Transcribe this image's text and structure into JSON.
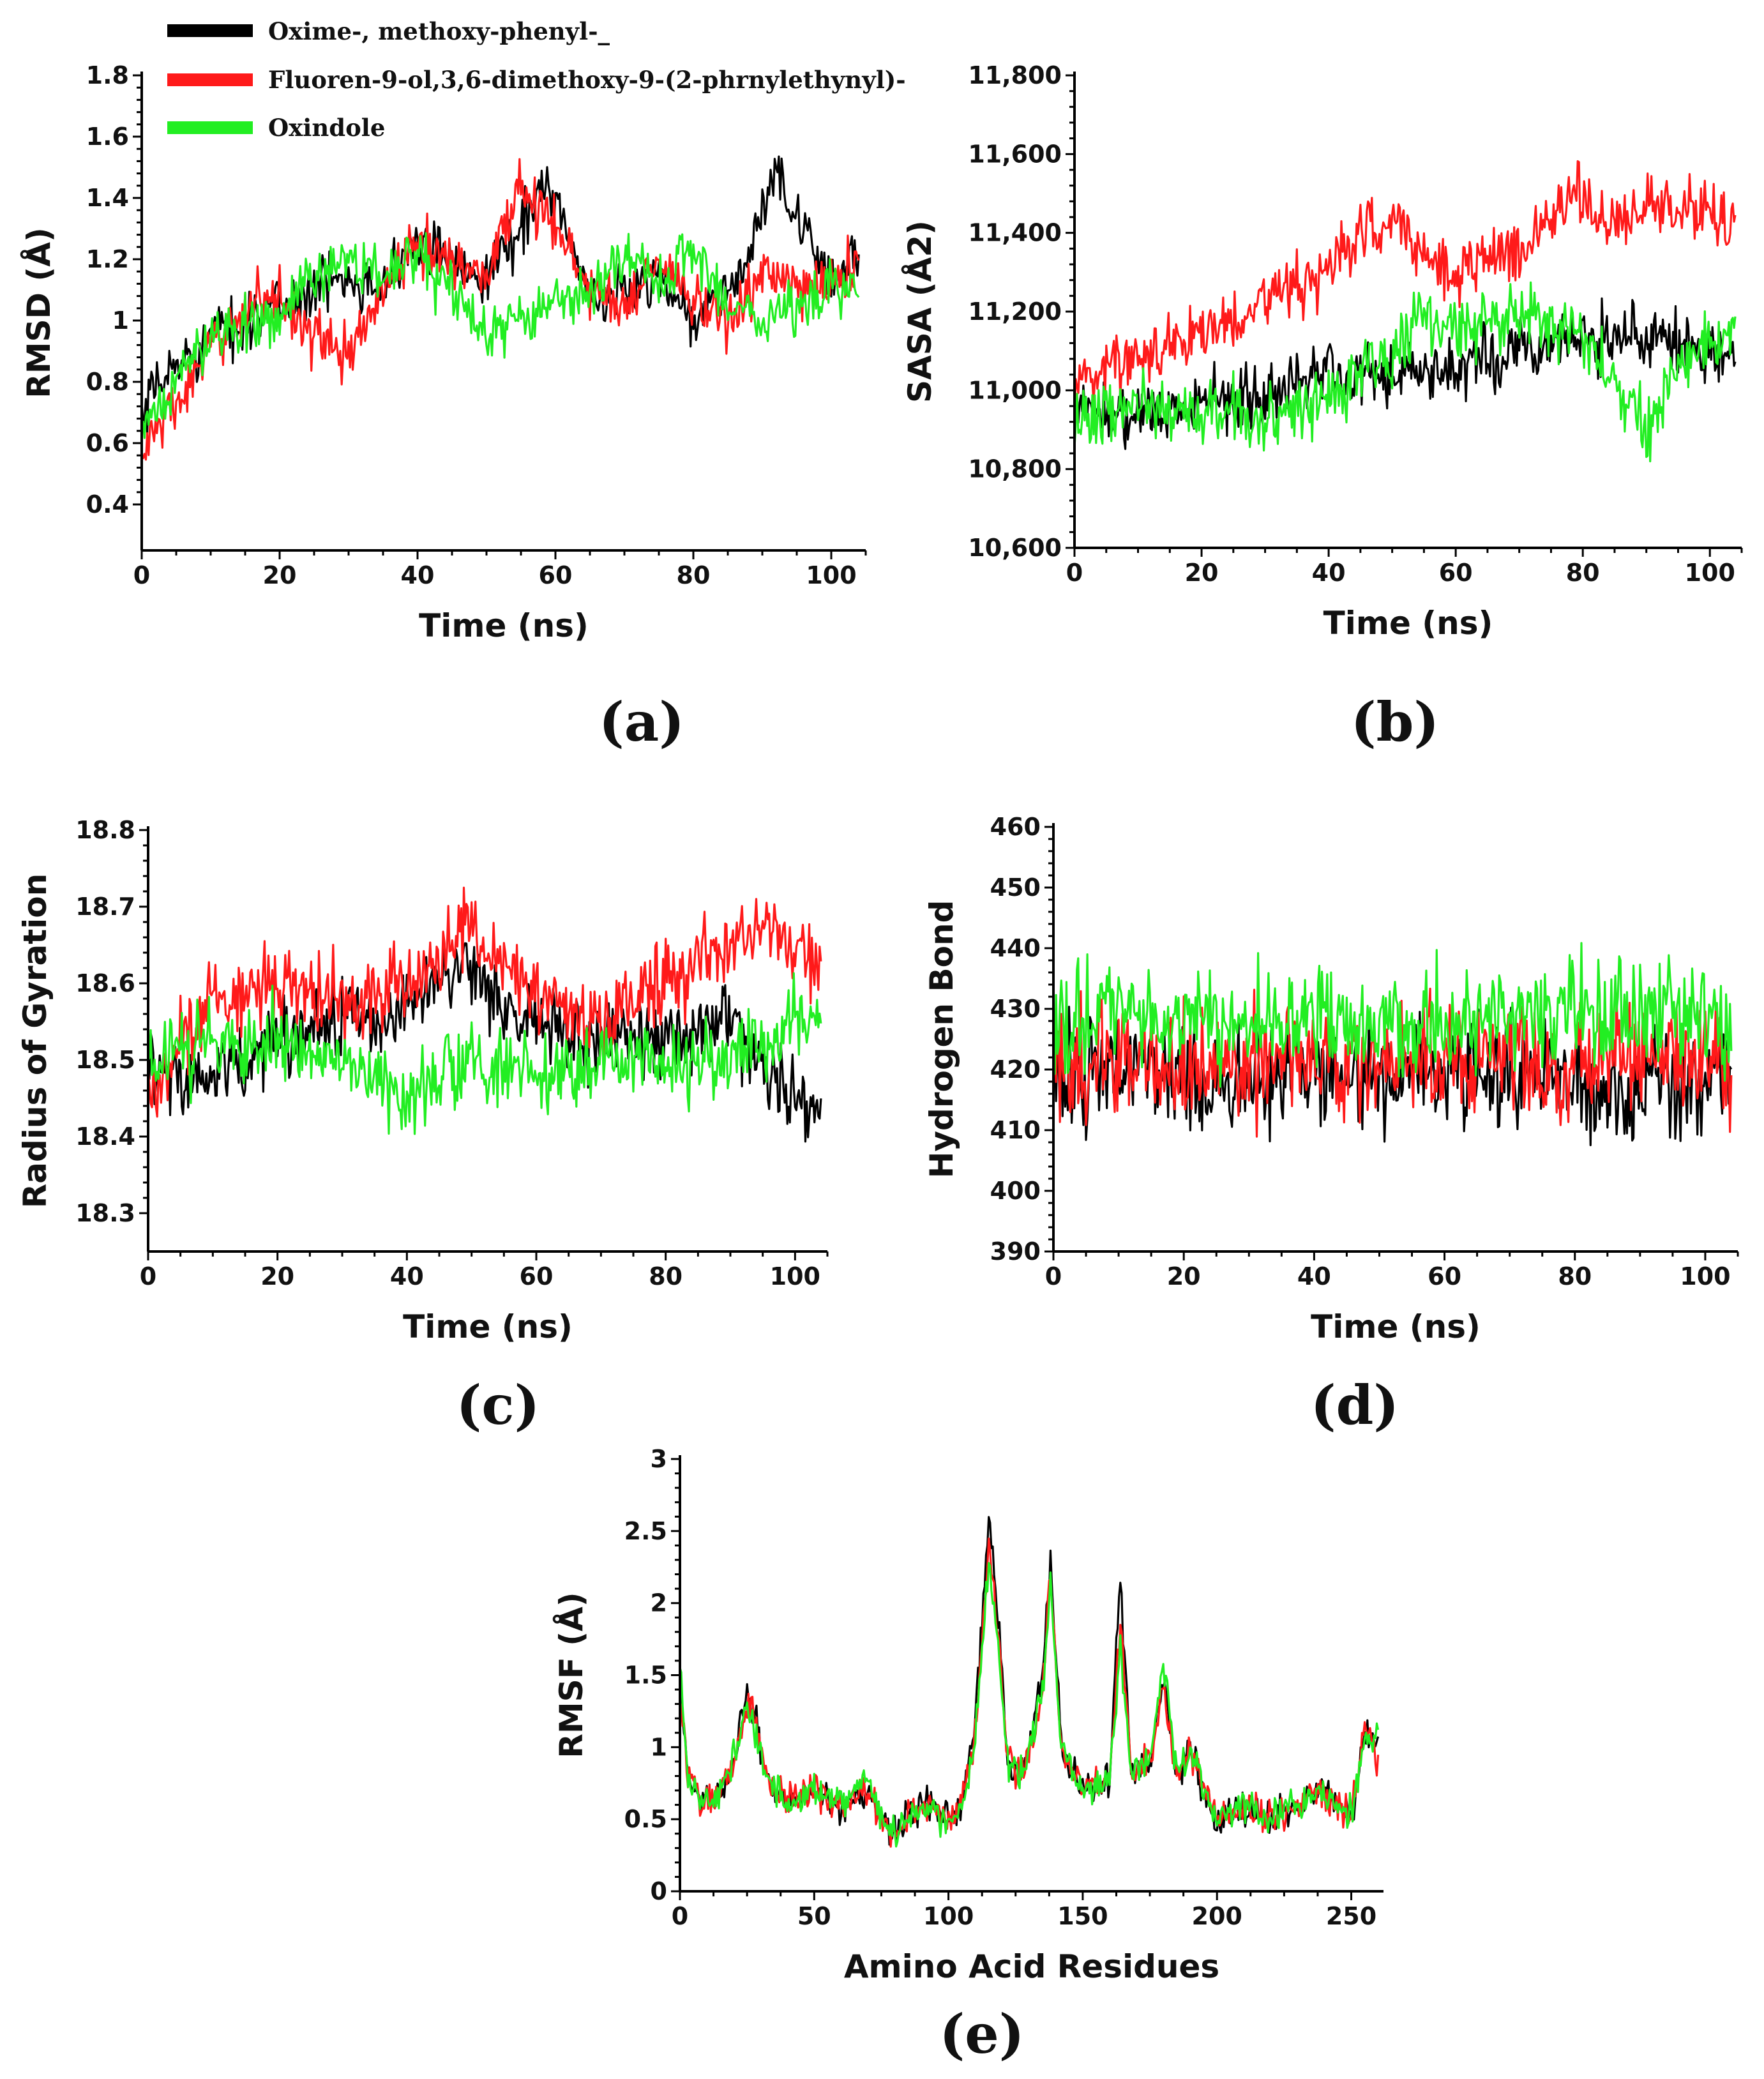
{
  "legend": {
    "entries": [
      {
        "label": "Oxime-, methoxy-phenyl-_",
        "color": "#000000"
      },
      {
        "label": "Fluoren-9-ol,3,6-dimethoxy-9-(2-phrnylethynyl)-",
        "color": "#ff1a1a"
      },
      {
        "label": "Oxindole",
        "color": "#22ee22"
      }
    ]
  },
  "chart_data": [
    {
      "id": "a",
      "type": "line",
      "panel_label": "(a)",
      "xlabel": "Time (ns)",
      "ylabel": "RMSD (Å)",
      "xlim": [
        0,
        105
      ],
      "ylim": [
        0.25,
        1.8
      ],
      "xticks": [
        0,
        20,
        40,
        60,
        80,
        100
      ],
      "yticks": [
        0.4,
        0.6,
        0.8,
        1,
        1.2,
        1.4,
        1.6,
        1.8
      ],
      "ytick_labels": [
        "0.4",
        "0.6",
        "0.8",
        "1",
        "1.2",
        "1.4",
        "1.6",
        "1.8"
      ],
      "noise": 0.09,
      "series": [
        {
          "name": "Oxime-, methoxy-phenyl-_",
          "color": "#000000",
          "x": [
            0,
            2,
            5,
            10,
            15,
            20,
            25,
            30,
            35,
            40,
            45,
            50,
            55,
            58,
            60,
            63,
            65,
            70,
            75,
            80,
            85,
            88,
            92,
            95,
            100,
            104
          ],
          "y": [
            0.65,
            0.78,
            0.85,
            0.95,
            1.0,
            1.05,
            1.1,
            1.15,
            1.12,
            1.25,
            1.2,
            1.15,
            1.3,
            1.45,
            1.4,
            1.2,
            1.05,
            1.1,
            1.15,
            1.0,
            1.1,
            1.2,
            1.5,
            1.3,
            1.15,
            1.2
          ]
        },
        {
          "name": "Fluoren-9-ol,3,6-dimethoxy-9-(2-phrnylethynyl)-",
          "color": "#ff1a1a",
          "x": [
            0,
            2,
            5,
            10,
            15,
            20,
            25,
            30,
            35,
            40,
            45,
            50,
            55,
            60,
            65,
            70,
            75,
            80,
            85,
            90,
            95,
            100,
            104
          ],
          "y": [
            0.55,
            0.65,
            0.72,
            0.9,
            1.05,
            1.08,
            0.95,
            0.88,
            1.1,
            1.25,
            1.2,
            1.15,
            1.45,
            1.3,
            1.1,
            1.05,
            1.2,
            1.05,
            1.0,
            1.15,
            1.1,
            1.12,
            1.2
          ]
        },
        {
          "name": "Oxindole",
          "color": "#22ee22",
          "x": [
            0,
            2,
            5,
            10,
            15,
            20,
            25,
            30,
            35,
            40,
            45,
            50,
            55,
            60,
            65,
            70,
            75,
            80,
            85,
            90,
            95,
            100,
            104
          ],
          "y": [
            0.6,
            0.7,
            0.8,
            0.95,
            1.0,
            1.0,
            1.15,
            1.2,
            1.15,
            1.2,
            1.1,
            0.95,
            1.0,
            1.05,
            1.1,
            1.2,
            1.1,
            1.25,
            1.05,
            1.0,
            1.05,
            1.1,
            1.1
          ]
        }
      ]
    },
    {
      "id": "b",
      "type": "line",
      "panel_label": "(b)",
      "xlabel": "Time (ns)",
      "ylabel": "SASA (Å2)",
      "xlim": [
        0,
        105
      ],
      "ylim": [
        10600,
        11800
      ],
      "xticks": [
        0,
        20,
        40,
        60,
        80,
        100
      ],
      "yticks": [
        10600,
        10800,
        11000,
        11200,
        11400,
        11600,
        11800
      ],
      "ytick_labels": [
        "10,600",
        "10,800",
        "11,000",
        "11,200",
        "11,400",
        "11,600",
        "11,800"
      ],
      "noise": 80,
      "series": [
        {
          "name": "Oxime-, methoxy-phenyl-_",
          "color": "#000000",
          "x": [
            0,
            10,
            20,
            30,
            40,
            50,
            60,
            70,
            80,
            90,
            100,
            104
          ],
          "y": [
            10950,
            10940,
            10960,
            10990,
            11060,
            11030,
            11060,
            11110,
            11130,
            11140,
            11110,
            11090
          ]
        },
        {
          "name": "Fluoren-9-ol,3,6-dimethoxy-9-(2-phrnylethynyl)-",
          "color": "#ff1a1a",
          "x": [
            0,
            10,
            20,
            30,
            40,
            45,
            50,
            55,
            60,
            65,
            70,
            75,
            80,
            85,
            90,
            95,
            100,
            104
          ],
          "y": [
            11020,
            11090,
            11150,
            11230,
            11300,
            11400,
            11420,
            11350,
            11300,
            11350,
            11360,
            11450,
            11500,
            11420,
            11480,
            11470,
            11450,
            11400
          ]
        },
        {
          "name": "Oxindole",
          "color": "#22ee22",
          "x": [
            0,
            10,
            20,
            30,
            40,
            50,
            55,
            60,
            70,
            80,
            88,
            90,
            95,
            100,
            104
          ],
          "y": [
            10920,
            10960,
            10950,
            10930,
            10990,
            11100,
            11200,
            11160,
            11190,
            11130,
            10980,
            10890,
            11050,
            11120,
            11160
          ]
        }
      ]
    },
    {
      "id": "c",
      "type": "line",
      "panel_label": "(c)",
      "xlabel": "Time (ns)",
      "ylabel": "Radius of Gyration",
      "xlim": [
        0,
        105
      ],
      "ylim": [
        18.25,
        18.8
      ],
      "xticks": [
        0,
        20,
        40,
        60,
        80,
        100
      ],
      "yticks": [
        18.3,
        18.4,
        18.5,
        18.6,
        18.7,
        18.8
      ],
      "ytick_labels": [
        "18.3",
        "18.4",
        "18.5",
        "18.6",
        "18.7",
        "18.8"
      ],
      "noise": 0.05,
      "series": [
        {
          "name": "Oxime-, methoxy-phenyl-_",
          "color": "#000000",
          "x": [
            0,
            5,
            10,
            20,
            30,
            40,
            45,
            50,
            55,
            60,
            70,
            80,
            90,
            95,
            100,
            104
          ],
          "y": [
            18.5,
            18.48,
            18.47,
            18.53,
            18.55,
            18.56,
            18.6,
            18.62,
            18.57,
            18.55,
            18.53,
            18.53,
            18.55,
            18.5,
            18.45,
            18.43
          ]
        },
        {
          "name": "Fluoren-9-ol,3,6-dimethoxy-9-(2-phrnylethynyl)-",
          "color": "#ff1a1a",
          "x": [
            0,
            5,
            10,
            20,
            30,
            40,
            45,
            50,
            55,
            60,
            70,
            80,
            90,
            95,
            100,
            104
          ],
          "y": [
            18.45,
            18.52,
            18.58,
            18.6,
            18.58,
            18.6,
            18.63,
            18.68,
            18.62,
            18.58,
            18.55,
            18.6,
            18.65,
            18.68,
            18.65,
            18.62
          ]
        },
        {
          "name": "Oxindole",
          "color": "#22ee22",
          "x": [
            0,
            5,
            10,
            20,
            30,
            40,
            50,
            60,
            70,
            80,
            90,
            95,
            100,
            104
          ],
          "y": [
            18.5,
            18.5,
            18.52,
            18.53,
            18.5,
            18.45,
            18.5,
            18.48,
            18.5,
            18.5,
            18.5,
            18.52,
            18.55,
            18.55
          ]
        }
      ]
    },
    {
      "id": "d",
      "type": "line",
      "panel_label": "(d)",
      "xlabel": "Time (ns)",
      "ylabel": "Hydrogen Bond",
      "xlim": [
        0,
        105
      ],
      "ylim": [
        390,
        460
      ],
      "xticks": [
        0,
        20,
        40,
        60,
        80,
        100
      ],
      "yticks": [
        390,
        400,
        410,
        420,
        430,
        440,
        450,
        460
      ],
      "ytick_labels": [
        "390",
        "400",
        "410",
        "420",
        "430",
        "440",
        "450",
        "460"
      ],
      "noise": 9,
      "series": [
        {
          "name": "Oxime-, methoxy-phenyl-_",
          "color": "#000000",
          "x": [
            0,
            10,
            20,
            30,
            40,
            50,
            60,
            70,
            80,
            90,
            100,
            104
          ],
          "y": [
            418,
            420,
            419,
            418,
            421,
            419,
            420,
            420,
            418,
            416,
            419,
            420
          ]
        },
        {
          "name": "Fluoren-9-ol,3,6-dimethoxy-9-(2-phrnylethynyl)-",
          "color": "#ff1a1a",
          "x": [
            0,
            10,
            20,
            30,
            40,
            50,
            60,
            70,
            80,
            90,
            100,
            104
          ],
          "y": [
            421,
            422,
            421,
            420,
            423,
            422,
            422,
            423,
            421,
            422,
            423,
            421
          ]
        },
        {
          "name": "Oxindole",
          "color": "#22ee22",
          "x": [
            0,
            10,
            20,
            30,
            40,
            50,
            60,
            70,
            80,
            90,
            100,
            104
          ],
          "y": [
            426,
            430,
            428,
            427,
            429,
            427,
            428,
            429,
            430,
            428,
            428,
            427
          ]
        }
      ]
    },
    {
      "id": "e",
      "type": "line",
      "panel_label": "(e)",
      "xlabel": "Amino Acid Residues",
      "ylabel": "RMSF (Å)",
      "xlim": [
        0,
        262
      ],
      "ylim": [
        0,
        3
      ],
      "xticks": [
        0,
        50,
        100,
        150,
        200,
        250
      ],
      "yticks": [
        0,
        0.5,
        1,
        1.5,
        2,
        2.5,
        3
      ],
      "ytick_labels": [
        "0",
        "0.5",
        "1",
        "1.5",
        "2",
        "2.5",
        "3"
      ],
      "noise": 0.12,
      "series": [
        {
          "name": "Oxime-, methoxy-phenyl-_",
          "color": "#000000",
          "x": [
            0,
            3,
            8,
            15,
            20,
            25,
            28,
            32,
            40,
            50,
            60,
            70,
            75,
            80,
            90,
            100,
            105,
            110,
            115,
            118,
            122,
            128,
            135,
            138,
            142,
            150,
            160,
            164,
            168,
            175,
            180,
            185,
            190,
            195,
            200,
            210,
            220,
            230,
            240,
            250,
            255,
            260
          ],
          "y": [
            1.5,
            0.8,
            0.6,
            0.7,
            0.9,
            1.4,
            1.2,
            0.8,
            0.6,
            0.7,
            0.6,
            0.7,
            0.5,
            0.4,
            0.6,
            0.5,
            0.6,
            1.2,
            2.6,
            2.0,
            0.9,
            0.8,
            1.5,
            2.3,
            1.0,
            0.7,
            0.8,
            2.2,
            0.8,
            0.9,
            1.5,
            0.8,
            1.0,
            0.7,
            0.5,
            0.6,
            0.5,
            0.6,
            0.7,
            0.5,
            1.1,
            1.0
          ]
        },
        {
          "name": "Fluoren-9-ol,3,6-dimethoxy-9-(2-phrnylethynyl)-",
          "color": "#ff1a1a",
          "x": [
            0,
            3,
            8,
            15,
            20,
            25,
            28,
            32,
            40,
            50,
            60,
            70,
            75,
            80,
            90,
            100,
            105,
            110,
            115,
            118,
            122,
            128,
            135,
            138,
            142,
            150,
            160,
            164,
            168,
            175,
            180,
            185,
            190,
            195,
            200,
            210,
            220,
            230,
            240,
            250,
            255,
            260
          ],
          "y": [
            1.4,
            0.8,
            0.6,
            0.7,
            0.9,
            1.3,
            1.2,
            0.8,
            0.6,
            0.7,
            0.6,
            0.7,
            0.5,
            0.4,
            0.6,
            0.5,
            0.6,
            1.1,
            2.4,
            1.9,
            0.9,
            0.8,
            1.4,
            2.2,
            1.0,
            0.7,
            0.8,
            1.9,
            0.8,
            0.9,
            1.4,
            0.8,
            1.0,
            0.7,
            0.5,
            0.6,
            0.5,
            0.6,
            0.7,
            0.5,
            1.2,
            0.9
          ]
        },
        {
          "name": "Oxindole",
          "color": "#22ee22",
          "x": [
            0,
            3,
            8,
            15,
            20,
            25,
            28,
            32,
            40,
            50,
            60,
            70,
            75,
            80,
            90,
            100,
            105,
            110,
            115,
            118,
            122,
            128,
            135,
            138,
            142,
            150,
            160,
            164,
            168,
            175,
            180,
            185,
            190,
            195,
            200,
            210,
            220,
            230,
            240,
            250,
            255,
            260
          ],
          "y": [
            1.6,
            0.8,
            0.6,
            0.7,
            0.9,
            1.3,
            1.1,
            0.8,
            0.6,
            0.7,
            0.6,
            0.8,
            0.5,
            0.4,
            0.6,
            0.5,
            0.6,
            1.1,
            2.3,
            1.8,
            0.9,
            0.8,
            1.4,
            2.1,
            1.0,
            0.7,
            0.8,
            1.7,
            0.8,
            0.9,
            1.6,
            0.8,
            1.0,
            0.7,
            0.5,
            0.6,
            0.5,
            0.6,
            0.7,
            0.5,
            1.0,
            1.1
          ]
        }
      ]
    }
  ]
}
